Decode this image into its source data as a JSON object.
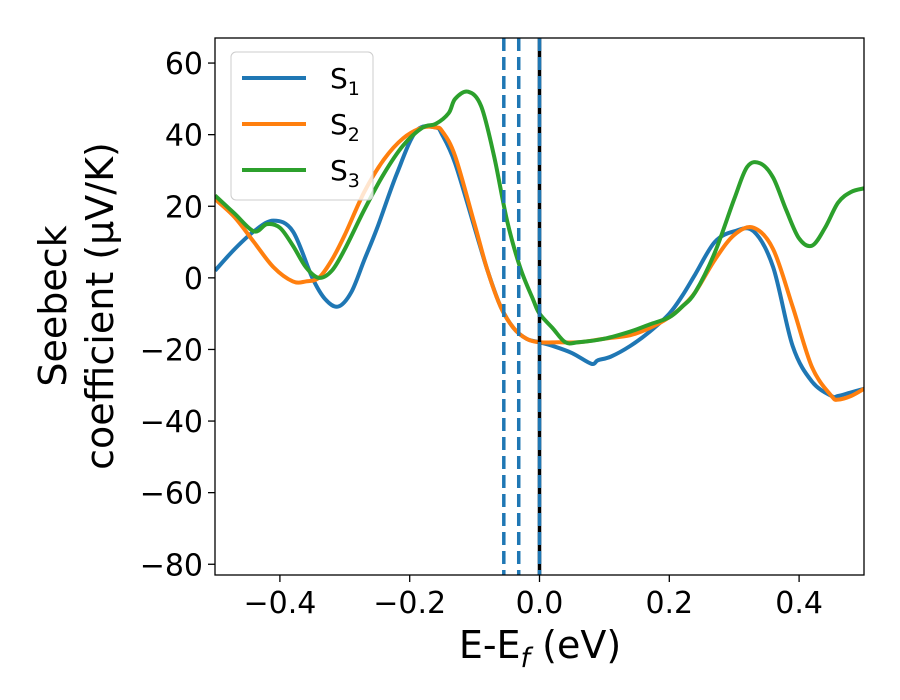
{
  "chart_data": {
    "type": "line",
    "xlabel": "E-E",
    "xlabel_sub": "f",
    "xlabel_unit": " (eV)",
    "ylabel_line1": "Seebeck",
    "ylabel_line2": "coefficient  (μV/K)",
    "xlim": [
      -0.5,
      0.5
    ],
    "ylim": [
      -83,
      67
    ],
    "xticks": [
      -0.4,
      -0.2,
      0.0,
      0.2,
      0.4
    ],
    "xtick_labels": [
      "−0.4",
      "−0.2",
      "0.0",
      "0.2",
      "0.4"
    ],
    "yticks": [
      60,
      40,
      20,
      0,
      -20,
      -40,
      -60,
      -80
    ],
    "ytick_labels": [
      "60",
      "40",
      "20",
      "0",
      "−20",
      "−40",
      "−60",
      "−80"
    ],
    "grid": false,
    "legend_position": "top-left",
    "vlines": [
      {
        "x": -0.055,
        "style": "dashed",
        "color": "#1f77b4"
      },
      {
        "x": -0.032,
        "style": "dashed",
        "color": "#1f77b4"
      },
      {
        "x": 0.0,
        "style": "solid",
        "color": "#000000"
      },
      {
        "x": 0.0,
        "style": "dashed",
        "color": "#1f77b4"
      }
    ],
    "series": [
      {
        "name": "S",
        "sub": "1",
        "color": "#1f77b4",
        "x": [
          -0.5,
          -0.47,
          -0.44,
          -0.41,
          -0.38,
          -0.35,
          -0.33,
          -0.31,
          -0.29,
          -0.27,
          -0.25,
          -0.22,
          -0.19,
          -0.16,
          -0.15,
          -0.13,
          -0.1,
          -0.08,
          -0.06,
          -0.04,
          -0.02,
          0.0,
          0.02,
          0.05,
          0.08,
          0.09,
          0.11,
          0.14,
          0.17,
          0.2,
          0.22,
          0.24,
          0.27,
          0.3,
          0.33,
          0.36,
          0.39,
          0.42,
          0.45,
          0.46,
          0.48,
          0.5
        ],
        "y": [
          2,
          8,
          13,
          16,
          13,
          0,
          -6,
          -8,
          -4,
          5,
          14,
          29,
          41,
          42,
          40,
          32,
          14,
          2,
          -8,
          -14,
          -17,
          -18,
          -19,
          -21,
          -24,
          -23,
          -22,
          -19,
          -15,
          -10,
          -5,
          1,
          10,
          13,
          13,
          3,
          -19,
          -29,
          -33,
          -33,
          -32,
          -31
        ]
      },
      {
        "name": "S",
        "sub": "2",
        "color": "#ff7f0e",
        "x": [
          -0.5,
          -0.47,
          -0.44,
          -0.41,
          -0.38,
          -0.36,
          -0.34,
          -0.32,
          -0.3,
          -0.27,
          -0.24,
          -0.21,
          -0.18,
          -0.16,
          -0.15,
          -0.13,
          -0.1,
          -0.08,
          -0.06,
          -0.04,
          -0.02,
          0.0,
          0.03,
          0.06,
          0.1,
          0.14,
          0.17,
          0.2,
          0.22,
          0.24,
          0.27,
          0.3,
          0.33,
          0.36,
          0.39,
          0.42,
          0.45,
          0.46,
          0.48,
          0.5
        ],
        "y": [
          22,
          17,
          10,
          3,
          -1,
          -1,
          0,
          5,
          12,
          24,
          33,
          39,
          42,
          42,
          41,
          34,
          15,
          2,
          -8,
          -14,
          -17,
          -18,
          -18,
          -18,
          -17,
          -16,
          -14,
          -11,
          -8,
          -4,
          5,
          12,
          14,
          8,
          -8,
          -25,
          -33,
          -34,
          -33,
          -31
        ]
      },
      {
        "name": "S",
        "sub": "3",
        "color": "#2ca02c",
        "x": [
          -0.5,
          -0.47,
          -0.44,
          -0.42,
          -0.4,
          -0.38,
          -0.36,
          -0.34,
          -0.32,
          -0.3,
          -0.27,
          -0.24,
          -0.21,
          -0.18,
          -0.16,
          -0.14,
          -0.13,
          -0.11,
          -0.09,
          -0.07,
          -0.05,
          -0.03,
          -0.01,
          0.0,
          0.02,
          0.04,
          0.06,
          0.1,
          0.14,
          0.17,
          0.2,
          0.22,
          0.24,
          0.27,
          0.3,
          0.32,
          0.34,
          0.36,
          0.38,
          0.4,
          0.42,
          0.44,
          0.46,
          0.48,
          0.5
        ],
        "y": [
          23,
          18,
          13,
          15,
          14,
          9,
          3,
          0,
          2,
          8,
          19,
          29,
          37,
          42,
          43,
          46,
          50,
          52,
          48,
          34,
          16,
          3,
          -6,
          -10,
          -14,
          -18,
          -18,
          -17,
          -15,
          -13,
          -11,
          -8,
          -4,
          7,
          22,
          31,
          32,
          28,
          19,
          11,
          9,
          14,
          21,
          24,
          25
        ]
      }
    ]
  }
}
